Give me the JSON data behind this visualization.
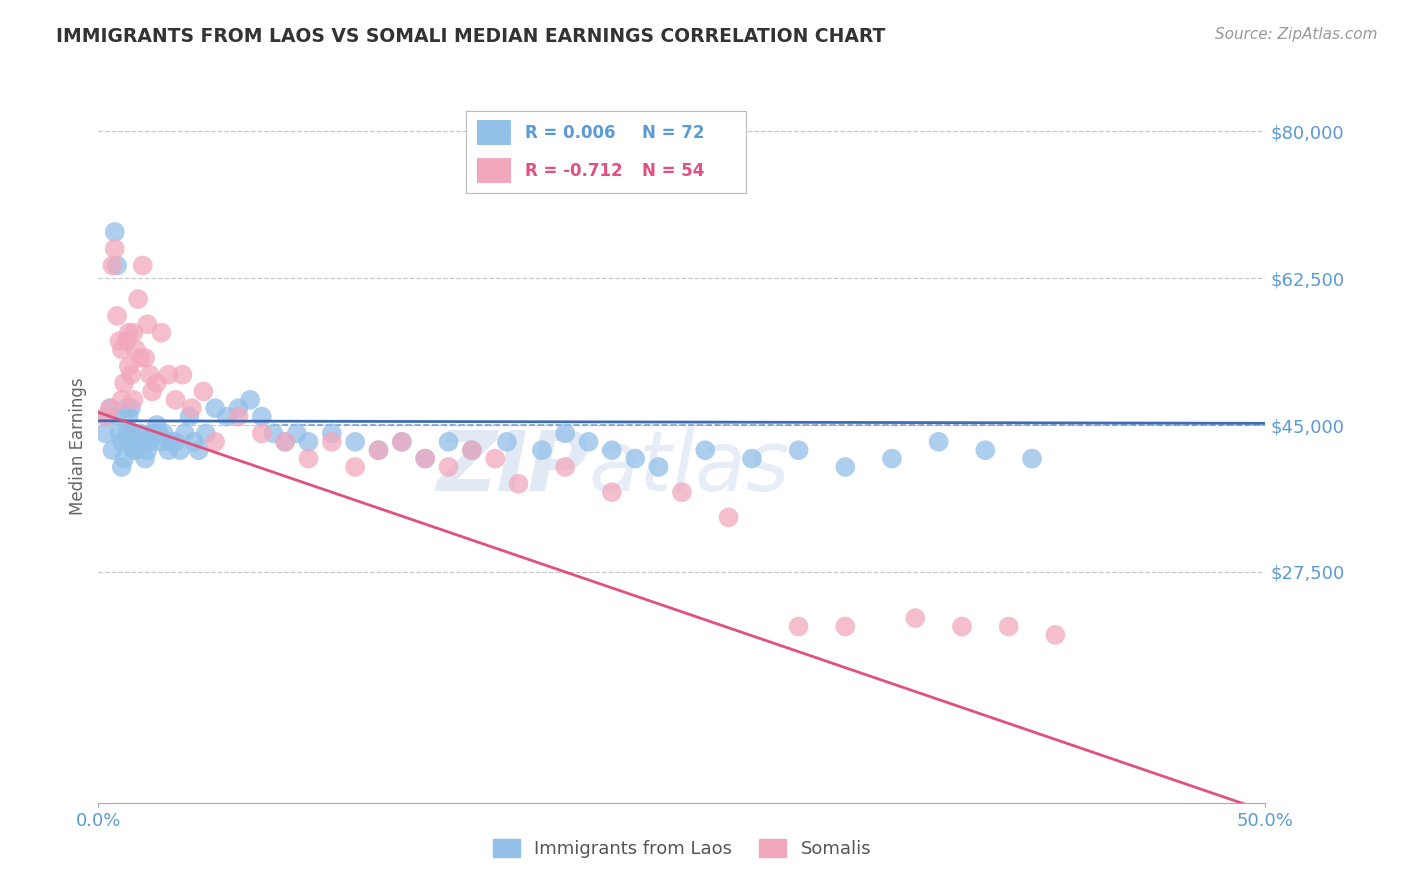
{
  "title": "IMMIGRANTS FROM LAOS VS SOMALI MEDIAN EARNINGS CORRELATION CHART",
  "source_text": "Source: ZipAtlas.com",
  "ylabel": "Median Earnings",
  "watermark": "ZIPatlas",
  "xlim": [
    0.0,
    0.5
  ],
  "ylim": [
    0,
    85000
  ],
  "yticks": [
    27500,
    45000,
    62500,
    80000
  ],
  "ytick_labels": [
    "$27,500",
    "$45,000",
    "$62,500",
    "$80,000"
  ],
  "xticks": [
    0.0,
    0.5
  ],
  "xtick_labels": [
    "0.0%",
    "50.0%"
  ],
  "blue_label": "Immigrants from Laos",
  "pink_label": "Somalis",
  "blue_r": "R = 0.006",
  "blue_n": "N = 72",
  "pink_r": "R = -0.712",
  "pink_n": "N = 54",
  "blue_color": "#92C0E8",
  "pink_color": "#F2A8BC",
  "blue_line_color": "#3D6CB5",
  "pink_line_color": "#E05080",
  "title_color": "#333333",
  "axis_color": "#5B9BD5",
  "grid_color": "#C8C8C8",
  "background_color": "#FFFFFF",
  "median_ref": 45000,
  "blue_line_y0": 45500,
  "blue_line_y1": 45200,
  "pink_line_y0": 46500,
  "pink_line_y1": -1000,
  "blue_x": [
    0.003,
    0.004,
    0.005,
    0.006,
    0.007,
    0.008,
    0.008,
    0.009,
    0.01,
    0.01,
    0.011,
    0.012,
    0.012,
    0.013,
    0.013,
    0.014,
    0.014,
    0.015,
    0.015,
    0.016,
    0.017,
    0.018,
    0.019,
    0.02,
    0.021,
    0.022,
    0.023,
    0.024,
    0.025,
    0.026,
    0.027,
    0.028,
    0.03,
    0.031,
    0.033,
    0.035,
    0.037,
    0.039,
    0.041,
    0.043,
    0.046,
    0.05,
    0.055,
    0.06,
    0.065,
    0.07,
    0.075,
    0.08,
    0.085,
    0.09,
    0.1,
    0.11,
    0.12,
    0.13,
    0.14,
    0.15,
    0.16,
    0.175,
    0.19,
    0.2,
    0.21,
    0.22,
    0.23,
    0.24,
    0.26,
    0.28,
    0.3,
    0.32,
    0.34,
    0.36,
    0.38,
    0.4
  ],
  "blue_y": [
    44000,
    46000,
    47000,
    42000,
    68000,
    64000,
    46000,
    44000,
    43000,
    40000,
    41000,
    47000,
    44000,
    43000,
    46000,
    44000,
    47000,
    44000,
    42000,
    42000,
    43000,
    44000,
    43000,
    41000,
    42000,
    43000,
    44000,
    44000,
    45000,
    44000,
    43000,
    44000,
    42000,
    43000,
    43000,
    42000,
    44000,
    46000,
    43000,
    42000,
    44000,
    47000,
    46000,
    47000,
    48000,
    46000,
    44000,
    43000,
    44000,
    43000,
    44000,
    43000,
    42000,
    43000,
    41000,
    43000,
    42000,
    43000,
    42000,
    44000,
    43000,
    42000,
    41000,
    40000,
    42000,
    41000,
    42000,
    40000,
    41000,
    43000,
    42000,
    41000
  ],
  "pink_x": [
    0.003,
    0.005,
    0.006,
    0.007,
    0.008,
    0.009,
    0.01,
    0.01,
    0.011,
    0.012,
    0.013,
    0.013,
    0.014,
    0.015,
    0.015,
    0.016,
    0.017,
    0.018,
    0.019,
    0.02,
    0.021,
    0.022,
    0.023,
    0.025,
    0.027,
    0.03,
    0.033,
    0.036,
    0.04,
    0.045,
    0.05,
    0.06,
    0.07,
    0.08,
    0.09,
    0.1,
    0.11,
    0.12,
    0.13,
    0.14,
    0.15,
    0.16,
    0.17,
    0.18,
    0.2,
    0.22,
    0.25,
    0.27,
    0.3,
    0.32,
    0.35,
    0.37,
    0.39,
    0.41
  ],
  "pink_y": [
    46000,
    47000,
    64000,
    66000,
    58000,
    55000,
    54000,
    48000,
    50000,
    55000,
    56000,
    52000,
    51000,
    56000,
    48000,
    54000,
    60000,
    53000,
    64000,
    53000,
    57000,
    51000,
    49000,
    50000,
    56000,
    51000,
    48000,
    51000,
    47000,
    49000,
    43000,
    46000,
    44000,
    43000,
    41000,
    43000,
    40000,
    42000,
    43000,
    41000,
    40000,
    42000,
    41000,
    38000,
    40000,
    37000,
    37000,
    34000,
    21000,
    21000,
    22000,
    21000,
    21000,
    20000
  ]
}
